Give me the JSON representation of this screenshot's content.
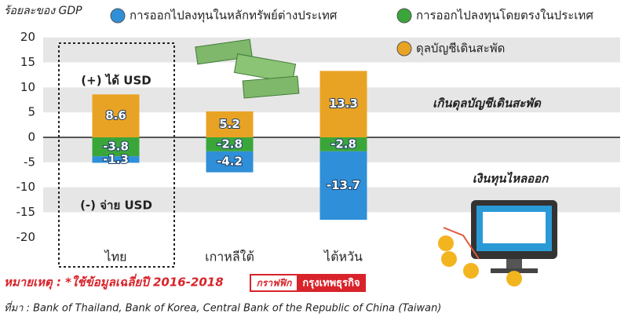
{
  "chart_data": {
    "type": "bar",
    "stacked": true,
    "y_axis_label": "ร้อยละของ GDP",
    "categories": [
      "ไทย",
      "เกาหลีใต้",
      "ไต้หวัน"
    ],
    "series": [
      {
        "name": "การออกไปลงทุนในหลักทรัพย์ต่างประเทศ",
        "color": "#2f8fd8",
        "values": [
          -1.3,
          -4.2,
          -13.7
        ]
      },
      {
        "name": "การออกไปลงทุนโดยตรงในประเทศ",
        "color": "#3aa63a",
        "values": [
          -3.8,
          -2.8,
          -2.8
        ]
      },
      {
        "name": "ดุลบัญชีเดินสะพัด",
        "color": "#e9a324",
        "values": [
          8.6,
          5.2,
          13.3
        ]
      }
    ],
    "ylim": [
      -22,
      22
    ],
    "yticks": [
      -20,
      -15,
      -10,
      -5,
      0,
      5,
      10,
      15,
      20
    ],
    "grid_bands": true,
    "annotations": [
      "(+) ได้ USD",
      "(-) จ่าย USD",
      "เกินดุลบัญชีเดินสะพัด",
      "เงินทุนไหลออก"
    ],
    "note": "หมายเหตุ : *ใช้ข้อมูลเฉลี่ยปี 2016-2018",
    "credit": [
      "กราฟฟิก",
      "กรุงเทพธุรกิจ"
    ],
    "source": "ที่มา : Bank of Thailand, Bank of Korea, Central Bank of the Republic of China (Taiwan)"
  }
}
